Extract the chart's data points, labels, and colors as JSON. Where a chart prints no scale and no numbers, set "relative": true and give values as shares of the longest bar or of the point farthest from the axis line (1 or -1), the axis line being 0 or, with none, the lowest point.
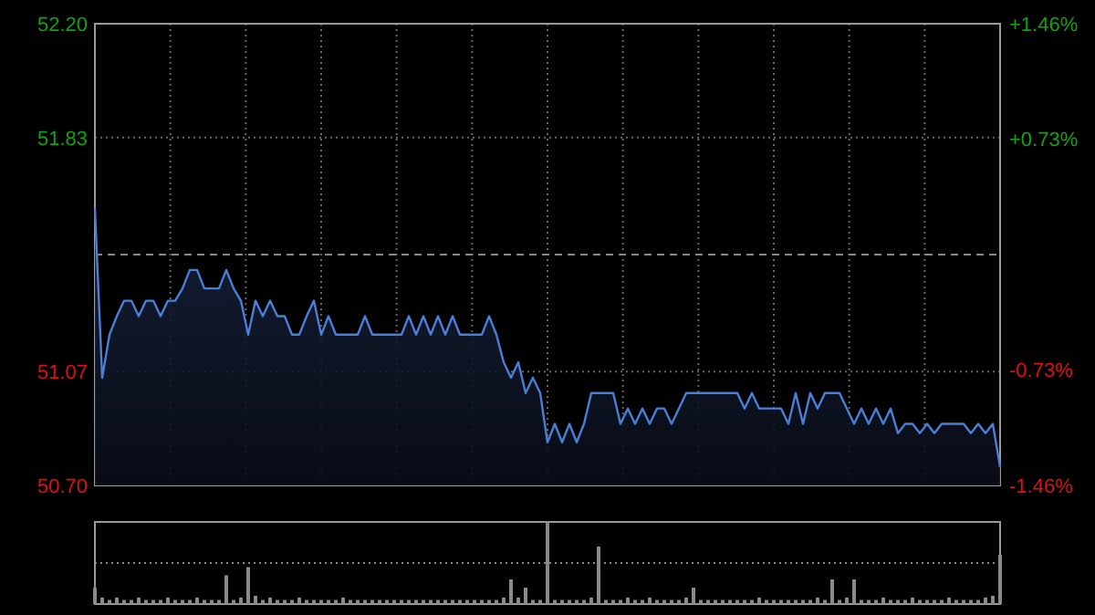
{
  "chart_data": [
    {
      "type": "area",
      "categories": [
        null,
        null,
        null,
        null,
        null,
        null,
        null,
        null,
        null,
        null,
        null,
        null,
        null,
        null,
        null,
        null,
        null,
        null,
        null,
        null,
        null,
        null,
        null,
        null,
        null,
        null,
        null,
        null,
        null,
        null,
        null,
        null,
        null,
        null,
        null,
        null,
        null,
        null,
        null,
        null,
        null,
        null,
        null,
        null,
        null,
        null,
        null,
        null,
        null,
        null,
        null,
        null,
        null,
        null,
        null,
        null,
        null,
        null,
        null,
        null,
        null,
        null,
        null,
        null,
        null,
        null,
        null,
        null,
        null,
        null,
        null,
        null,
        null,
        null,
        null,
        null,
        null,
        null,
        null,
        null,
        null,
        null,
        null,
        null,
        null,
        null,
        null,
        null,
        null,
        null,
        null,
        null,
        null,
        null,
        null,
        null,
        null,
        null,
        null,
        null,
        null,
        null,
        null,
        null,
        null,
        null,
        null,
        null,
        null,
        null,
        null,
        null,
        null,
        null,
        null,
        null,
        null,
        null,
        null,
        null,
        null,
        null,
        null,
        null,
        null
      ],
      "series": [
        {
          "color": "#4a7fd8",
          "values": [
            51.6,
            51.05,
            51.19,
            51.25,
            51.3,
            51.3,
            51.25,
            51.3,
            51.3,
            51.25,
            51.3,
            51.3,
            51.34,
            51.4,
            51.4,
            51.34,
            51.34,
            51.34,
            51.4,
            51.34,
            51.3,
            51.19,
            51.3,
            51.25,
            51.3,
            51.25,
            51.25,
            51.19,
            51.19,
            51.25,
            51.3,
            51.19,
            51.25,
            51.19,
            51.19,
            51.19,
            51.19,
            51.25,
            51.19,
            51.19,
            51.19,
            51.19,
            51.19,
            51.25,
            51.19,
            51.25,
            51.19,
            51.25,
            51.19,
            51.25,
            51.19,
            51.19,
            51.19,
            51.19,
            51.25,
            51.19,
            51.1,
            51.05,
            51.1,
            51.0,
            51.05,
            51.0,
            50.84,
            50.9,
            50.84,
            50.9,
            50.84,
            50.9,
            51.0,
            51.0,
            51.0,
            51.0,
            50.9,
            50.95,
            50.9,
            50.95,
            50.9,
            50.95,
            50.95,
            50.9,
            50.95,
            51.0,
            51.0,
            51.0,
            51.0,
            51.0,
            51.0,
            51.0,
            51.0,
            50.95,
            51.0,
            50.95,
            50.95,
            50.95,
            50.95,
            50.9,
            51.0,
            50.9,
            51.0,
            50.95,
            51.0,
            51.0,
            51.0,
            50.95,
            50.9,
            50.95,
            50.9,
            50.95,
            50.9,
            50.95,
            50.87,
            50.9,
            50.9,
            50.87,
            50.9,
            50.87,
            50.9,
            50.9,
            50.9,
            50.9,
            50.87,
            50.9,
            50.87,
            50.9,
            50.76
          ]
        }
      ],
      "ylim": [
        50.7,
        52.2
      ],
      "yticks": [
        {
          "value": 50.7,
          "label": "50.70"
        },
        51.07,
        51.83,
        {
          "value": 52.2,
          "label": "52.20"
        }
      ],
      "y2lim": [
        -1.46,
        1.46
      ],
      "y2ticks": [
        {
          "value": -1.46,
          "label": "-1.46%"
        },
        {
          "value": -0.73,
          "label": "-0.73%"
        },
        {
          "value": 0.73,
          "label": "+0.73%"
        },
        {
          "value": 1.46,
          "label": "+1.46%"
        }
      ],
      "ref_lines": [
        {
          "axis": "y",
          "value": 51.45,
          "line_style": "dashed"
        }
      ],
      "grid": true,
      "tick_labels": "y"
    },
    {
      "type": "bar",
      "relative": true,
      "ref_lines": [
        {
          "axis": "y",
          "value": 0.5,
          "line_style": "dotted"
        }
      ],
      "tick_labels": false,
      "categories": [
        null,
        null,
        null,
        null,
        null,
        null,
        null,
        null,
        null,
        null,
        null,
        null,
        null,
        null,
        null,
        null,
        null,
        null,
        null,
        null,
        null,
        null,
        null,
        null,
        null,
        null,
        null,
        null,
        null,
        null,
        null,
        null,
        null,
        null,
        null,
        null,
        null,
        null,
        null,
        null,
        null,
        null,
        null,
        null,
        null,
        null,
        null,
        null,
        null,
        null,
        null,
        null,
        null,
        null,
        null,
        null,
        null,
        null,
        null,
        null,
        null,
        null,
        null,
        null,
        null,
        null,
        null,
        null,
        null,
        null,
        null,
        null,
        null,
        null,
        null,
        null,
        null,
        null,
        null,
        null,
        null,
        null,
        null,
        null,
        null,
        null,
        null,
        null,
        null,
        null,
        null,
        null,
        null,
        null,
        null,
        null,
        null,
        null,
        null,
        null,
        null,
        null,
        null,
        null,
        null,
        null,
        null,
        null,
        null,
        null,
        null,
        null,
        null,
        null,
        null,
        null,
        null,
        null,
        null,
        null,
        null,
        null,
        null,
        null,
        null
      ],
      "series": [
        {
          "color": "#8a8a8a",
          "values": [
            0.2,
            0.08,
            0.05,
            0.08,
            0.05,
            0.05,
            0.08,
            0.05,
            0.05,
            0.05,
            0.08,
            0.05,
            0.05,
            0.05,
            0.08,
            0.05,
            0.05,
            0.05,
            0.35,
            0.05,
            0.08,
            0.45,
            0.1,
            0.05,
            0.08,
            0.05,
            0.05,
            0.05,
            0.08,
            0.05,
            0.05,
            0.05,
            0.05,
            0.05,
            0.08,
            0.05,
            0.05,
            0.05,
            0.05,
            0.05,
            0.05,
            0.05,
            0.05,
            0.05,
            0.05,
            0.05,
            0.05,
            0.05,
            0.05,
            0.05,
            0.05,
            0.05,
            0.05,
            0.05,
            0.05,
            0.05,
            0.08,
            0.3,
            0.08,
            0.2,
            0.05,
            0.05,
            1.0,
            0.05,
            0.05,
            0.05,
            0.05,
            0.05,
            0.08,
            0.7,
            0.05,
            0.05,
            0.05,
            0.08,
            0.05,
            0.05,
            0.08,
            0.05,
            0.05,
            0.05,
            0.05,
            0.08,
            0.2,
            0.05,
            0.05,
            0.05,
            0.05,
            0.05,
            0.05,
            0.05,
            0.05,
            0.08,
            0.05,
            0.05,
            0.05,
            0.05,
            0.05,
            0.05,
            0.05,
            0.08,
            0.05,
            0.3,
            0.05,
            0.08,
            0.3,
            0.05,
            0.05,
            0.05,
            0.08,
            0.05,
            0.05,
            0.05,
            0.08,
            0.05,
            0.05,
            0.05,
            0.05,
            0.08,
            0.05,
            0.05,
            0.05,
            0.05,
            0.08,
            0.1,
            0.6
          ]
        }
      ]
    }
  ]
}
